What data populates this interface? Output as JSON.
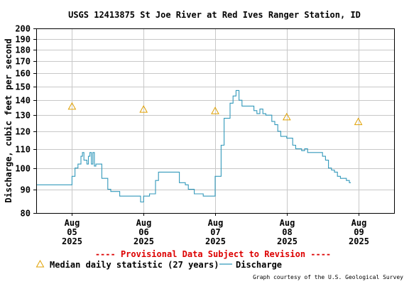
{
  "chart_data": {
    "type": "line",
    "title": "USGS 12413875 St Joe River at Red Ives Ranger Station, ID",
    "ylabel": "Discharge, cubic feet per second",
    "yscale": "log",
    "ylim": [
      80,
      200
    ],
    "yticks": [
      80,
      90,
      100,
      110,
      120,
      130,
      140,
      150,
      160,
      170,
      180,
      190,
      200
    ],
    "xlim": [
      "2025-08-04T12:00",
      "2025-08-09T12:00"
    ],
    "xticks": [
      {
        "x": "2025-08-05T00:00",
        "month": "Aug",
        "day": "05",
        "year": "2025"
      },
      {
        "x": "2025-08-06T00:00",
        "month": "Aug",
        "day": "06",
        "year": "2025"
      },
      {
        "x": "2025-08-07T00:00",
        "month": "Aug",
        "day": "07",
        "year": "2025"
      },
      {
        "x": "2025-08-08T00:00",
        "month": "Aug",
        "day": "08",
        "year": "2025"
      },
      {
        "x": "2025-08-09T00:00",
        "month": "Aug",
        "day": "09",
        "year": "2025"
      }
    ],
    "grid": true,
    "series": [
      {
        "name": "Discharge",
        "color": "#3399bb",
        "points": [
          [
            "2025-08-04T12:00",
            92
          ],
          [
            "2025-08-04T22:00",
            92
          ],
          [
            "2025-08-05T00:00",
            96
          ],
          [
            "2025-08-05T01:00",
            100
          ],
          [
            "2025-08-05T02:00",
            102
          ],
          [
            "2025-08-05T03:00",
            106
          ],
          [
            "2025-08-05T03:30",
            108
          ],
          [
            "2025-08-05T04:00",
            104
          ],
          [
            "2025-08-05T05:00",
            102
          ],
          [
            "2025-08-05T05:30",
            106
          ],
          [
            "2025-08-05T06:00",
            108
          ],
          [
            "2025-08-05T06:30",
            102
          ],
          [
            "2025-08-05T07:00",
            108
          ],
          [
            "2025-08-05T07:30",
            101
          ],
          [
            "2025-08-05T08:00",
            102
          ],
          [
            "2025-08-05T10:00",
            95
          ],
          [
            "2025-08-05T12:00",
            90
          ],
          [
            "2025-08-05T13:00",
            89
          ],
          [
            "2025-08-05T14:00",
            89
          ],
          [
            "2025-08-05T16:00",
            87
          ],
          [
            "2025-08-05T22:00",
            87
          ],
          [
            "2025-08-05T23:00",
            84.5
          ],
          [
            "2025-08-06T00:00",
            87
          ],
          [
            "2025-08-06T02:00",
            88
          ],
          [
            "2025-08-06T04:00",
            94
          ],
          [
            "2025-08-06T05:00",
            98
          ],
          [
            "2025-08-06T10:00",
            98
          ],
          [
            "2025-08-06T12:00",
            93
          ],
          [
            "2025-08-06T14:00",
            92
          ],
          [
            "2025-08-06T15:00",
            90
          ],
          [
            "2025-08-06T17:00",
            88
          ],
          [
            "2025-08-06T20:00",
            87
          ],
          [
            "2025-08-06T23:00",
            87
          ],
          [
            "2025-08-07T00:00",
            96
          ],
          [
            "2025-08-07T02:00",
            112
          ],
          [
            "2025-08-07T03:00",
            128
          ],
          [
            "2025-08-07T05:00",
            138
          ],
          [
            "2025-08-07T06:00",
            143
          ],
          [
            "2025-08-07T07:00",
            147
          ],
          [
            "2025-08-07T08:00",
            140
          ],
          [
            "2025-08-07T09:00",
            136
          ],
          [
            "2025-08-07T12:00",
            136
          ],
          [
            "2025-08-07T13:00",
            133
          ],
          [
            "2025-08-07T14:00",
            131
          ],
          [
            "2025-08-07T15:00",
            134
          ],
          [
            "2025-08-07T16:00",
            131
          ],
          [
            "2025-08-07T17:00",
            130
          ],
          [
            "2025-08-07T18:00",
            130
          ],
          [
            "2025-08-07T19:00",
            126
          ],
          [
            "2025-08-07T20:00",
            124
          ],
          [
            "2025-08-07T21:00",
            120
          ],
          [
            "2025-08-07T22:00",
            117
          ],
          [
            "2025-08-08T00:00",
            116
          ],
          [
            "2025-08-08T02:00",
            112
          ],
          [
            "2025-08-08T03:00",
            110
          ],
          [
            "2025-08-08T04:00",
            110
          ],
          [
            "2025-08-08T05:00",
            109
          ],
          [
            "2025-08-08T06:00",
            110
          ],
          [
            "2025-08-08T07:00",
            108
          ],
          [
            "2025-08-08T10:00",
            108
          ],
          [
            "2025-08-08T12:00",
            106
          ],
          [
            "2025-08-08T13:00",
            104
          ],
          [
            "2025-08-08T14:00",
            100
          ],
          [
            "2025-08-08T15:00",
            99
          ],
          [
            "2025-08-08T16:00",
            98
          ],
          [
            "2025-08-08T17:00",
            96
          ],
          [
            "2025-08-08T18:00",
            95
          ],
          [
            "2025-08-08T20:00",
            94
          ],
          [
            "2025-08-08T21:00",
            93
          ],
          [
            "2025-08-08T21:30",
            93
          ]
        ]
      }
    ],
    "median": {
      "name": "Median daily statistic (27 years)",
      "color": "#e0a000",
      "points": [
        [
          "2025-08-05T00:00",
          136
        ],
        [
          "2025-08-06T00:00",
          134
        ],
        [
          "2025-08-07T00:00",
          133
        ],
        [
          "2025-08-08T00:00",
          129
        ],
        [
          "2025-08-09T00:00",
          126
        ]
      ]
    },
    "provisional_note": "---- Provisional Data Subject to Revision ----",
    "credit": "Graph courtesy of the U.S. Geological Survey"
  }
}
